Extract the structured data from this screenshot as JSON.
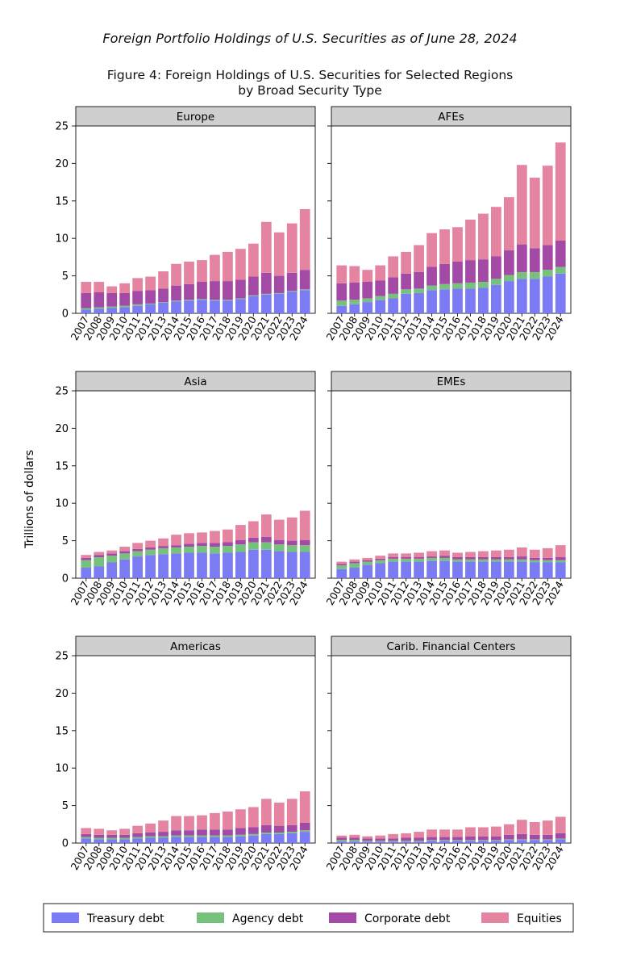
{
  "doc_title": "Foreign Portfolio Holdings of U.S. Securities as of June 28, 2024",
  "figure_title_line1": "Figure 4: Foreign Holdings of U.S. Securities for Selected Regions",
  "figure_title_line2": "by Broad Security Type",
  "chart_data": {
    "type": "bar",
    "stacked": true,
    "ylabel": "Trillions of dollars",
    "ylim": [
      0,
      25
    ],
    "yticks": [
      0,
      5,
      10,
      15,
      20,
      25
    ],
    "categories": [
      "2007",
      "2008",
      "2009",
      "2010",
      "2011",
      "2012",
      "2013",
      "2014",
      "2015",
      "2016",
      "2017",
      "2018",
      "2019",
      "2020",
      "2021",
      "2022",
      "2023",
      "2024"
    ],
    "legend": [
      {
        "name": "Treasury debt",
        "color": "#7b7bf5"
      },
      {
        "name": "Agency debt",
        "color": "#76c27d"
      },
      {
        "name": "Corporate debt",
        "color": "#a24aa6"
      },
      {
        "name": "Equities",
        "color": "#e584a0"
      }
    ],
    "legend_position": "bottom",
    "panels": [
      {
        "title": "Europe",
        "series": [
          {
            "name": "Treasury debt",
            "values": [
              0.5,
              0.6,
              0.7,
              0.8,
              1.0,
              1.2,
              1.4,
              1.6,
              1.7,
              1.8,
              1.7,
              1.7,
              1.9,
              2.3,
              2.5,
              2.6,
              2.9,
              3.1
            ]
          },
          {
            "name": "Agency debt",
            "values": [
              0.2,
              0.2,
              0.2,
              0.2,
              0.2,
              0.1,
              0.1,
              0.1,
              0.1,
              0.1,
              0.1,
              0.1,
              0.1,
              0.1,
              0.1,
              0.1,
              0.1,
              0.1
            ]
          },
          {
            "name": "Corporate debt",
            "values": [
              2.0,
              2.0,
              1.8,
              1.7,
              1.8,
              1.8,
              1.8,
              2.0,
              2.1,
              2.3,
              2.5,
              2.5,
              2.5,
              2.5,
              2.8,
              2.3,
              2.4,
              2.6
            ]
          },
          {
            "name": "Equities",
            "values": [
              1.5,
              1.4,
              0.9,
              1.3,
              1.7,
              1.8,
              2.3,
              2.9,
              3.0,
              2.9,
              3.5,
              3.9,
              4.1,
              4.4,
              6.8,
              5.8,
              6.6,
              8.1
            ]
          }
        ]
      },
      {
        "title": "AFEs",
        "series": [
          {
            "name": "Treasury debt",
            "values": [
              1.0,
              1.2,
              1.5,
              1.8,
              2.0,
              2.6,
              2.7,
              3.1,
              3.2,
              3.3,
              3.3,
              3.4,
              3.8,
              4.3,
              4.6,
              4.6,
              4.9,
              5.3
            ]
          },
          {
            "name": "Agency debt",
            "values": [
              0.7,
              0.6,
              0.5,
              0.5,
              0.6,
              0.6,
              0.6,
              0.6,
              0.7,
              0.7,
              0.8,
              0.8,
              0.8,
              0.8,
              0.9,
              0.9,
              0.9,
              0.9
            ]
          },
          {
            "name": "Corporate debt",
            "values": [
              2.3,
              2.3,
              2.2,
              2.1,
              2.2,
              2.1,
              2.2,
              2.5,
              2.7,
              2.9,
              3.0,
              3.0,
              3.0,
              3.3,
              3.7,
              3.2,
              3.3,
              3.5
            ]
          },
          {
            "name": "Equities",
            "values": [
              2.4,
              2.2,
              1.6,
              2.0,
              2.8,
              2.9,
              3.6,
              4.5,
              4.6,
              4.6,
              5.4,
              6.1,
              6.6,
              7.1,
              10.6,
              9.4,
              10.6,
              13.1
            ]
          }
        ]
      },
      {
        "title": "Asia",
        "series": [
          {
            "name": "Treasury debt",
            "values": [
              1.4,
              1.6,
              2.1,
              2.5,
              2.9,
              3.1,
              3.2,
              3.3,
              3.4,
              3.4,
              3.3,
              3.4,
              3.5,
              3.8,
              3.8,
              3.6,
              3.5,
              3.5
            ]
          },
          {
            "name": "Agency debt",
            "values": [
              1.0,
              1.2,
              0.9,
              0.8,
              0.7,
              0.7,
              0.8,
              0.8,
              0.8,
              0.9,
              0.9,
              0.9,
              1.0,
              1.0,
              1.0,
              0.9,
              0.9,
              0.9
            ]
          },
          {
            "name": "Corporate debt",
            "values": [
              0.3,
              0.3,
              0.3,
              0.3,
              0.3,
              0.3,
              0.3,
              0.3,
              0.4,
              0.4,
              0.5,
              0.5,
              0.6,
              0.6,
              0.7,
              0.6,
              0.6,
              0.7
            ]
          },
          {
            "name": "Equities",
            "values": [
              0.4,
              0.4,
              0.4,
              0.6,
              0.8,
              0.9,
              1.0,
              1.4,
              1.4,
              1.4,
              1.6,
              1.7,
              2.0,
              2.2,
              3.0,
              2.7,
              3.1,
              3.9
            ]
          }
        ]
      },
      {
        "title": "EMEs",
        "series": [
          {
            "name": "Treasury debt",
            "values": [
              1.2,
              1.4,
              1.8,
              2.0,
              2.2,
              2.2,
              2.2,
              2.3,
              2.3,
              2.2,
              2.2,
              2.2,
              2.2,
              2.2,
              2.2,
              2.1,
              2.1,
              2.1
            ]
          },
          {
            "name": "Agency debt",
            "values": [
              0.5,
              0.6,
              0.4,
              0.4,
              0.4,
              0.4,
              0.4,
              0.4,
              0.4,
              0.3,
              0.3,
              0.3,
              0.3,
              0.3,
              0.3,
              0.3,
              0.3,
              0.3
            ]
          },
          {
            "name": "Corporate debt",
            "values": [
              0.2,
              0.2,
              0.2,
              0.2,
              0.2,
              0.2,
              0.2,
              0.2,
              0.3,
              0.3,
              0.3,
              0.3,
              0.3,
              0.3,
              0.4,
              0.3,
              0.3,
              0.4
            ]
          },
          {
            "name": "Equities",
            "values": [
              0.3,
              0.3,
              0.3,
              0.4,
              0.5,
              0.5,
              0.6,
              0.7,
              0.7,
              0.6,
              0.7,
              0.8,
              0.9,
              1.0,
              1.2,
              1.1,
              1.3,
              1.6
            ]
          }
        ]
      },
      {
        "title": "Americas",
        "series": [
          {
            "name": "Treasury debt",
            "values": [
              0.6,
              0.5,
              0.5,
              0.5,
              0.6,
              0.7,
              0.7,
              0.8,
              0.8,
              0.8,
              0.8,
              0.8,
              0.9,
              1.0,
              1.2,
              1.2,
              1.3,
              1.5
            ]
          },
          {
            "name": "Agency debt",
            "values": [
              0.2,
              0.2,
              0.2,
              0.2,
              0.2,
              0.2,
              0.2,
              0.2,
              0.2,
              0.2,
              0.2,
              0.2,
              0.2,
              0.2,
              0.2,
              0.2,
              0.2,
              0.2
            ]
          },
          {
            "name": "Corporate debt",
            "values": [
              0.4,
              0.4,
              0.4,
              0.4,
              0.5,
              0.5,
              0.6,
              0.7,
              0.7,
              0.8,
              0.8,
              0.8,
              0.9,
              0.9,
              1.0,
              0.9,
              0.9,
              1.0
            ]
          },
          {
            "name": "Equities",
            "values": [
              0.8,
              0.8,
              0.6,
              0.8,
              1.0,
              1.2,
              1.5,
              1.9,
              1.9,
              1.9,
              2.2,
              2.4,
              2.5,
              2.7,
              3.5,
              3.1,
              3.5,
              4.2
            ]
          }
        ]
      },
      {
        "title": "Carib. Financial Centers",
        "series": [
          {
            "name": "Treasury debt",
            "values": [
              0.2,
              0.2,
              0.2,
              0.2,
              0.2,
              0.2,
              0.2,
              0.3,
              0.3,
              0.3,
              0.3,
              0.3,
              0.3,
              0.4,
              0.4,
              0.4,
              0.4,
              0.5
            ]
          },
          {
            "name": "Agency debt",
            "values": [
              0.2,
              0.2,
              0.1,
              0.1,
              0.1,
              0.1,
              0.1,
              0.1,
              0.1,
              0.1,
              0.1,
              0.1,
              0.1,
              0.1,
              0.1,
              0.1,
              0.1,
              0.1
            ]
          },
          {
            "name": "Corporate debt",
            "values": [
              0.3,
              0.3,
              0.3,
              0.3,
              0.3,
              0.4,
              0.4,
              0.4,
              0.4,
              0.4,
              0.5,
              0.5,
              0.5,
              0.6,
              0.7,
              0.6,
              0.6,
              0.7
            ]
          },
          {
            "name": "Equities",
            "values": [
              0.3,
              0.4,
              0.3,
              0.4,
              0.6,
              0.6,
              0.8,
              1.0,
              1.0,
              1.0,
              1.2,
              1.2,
              1.3,
              1.4,
              1.9,
              1.7,
              1.9,
              2.2
            ]
          }
        ]
      }
    ]
  }
}
